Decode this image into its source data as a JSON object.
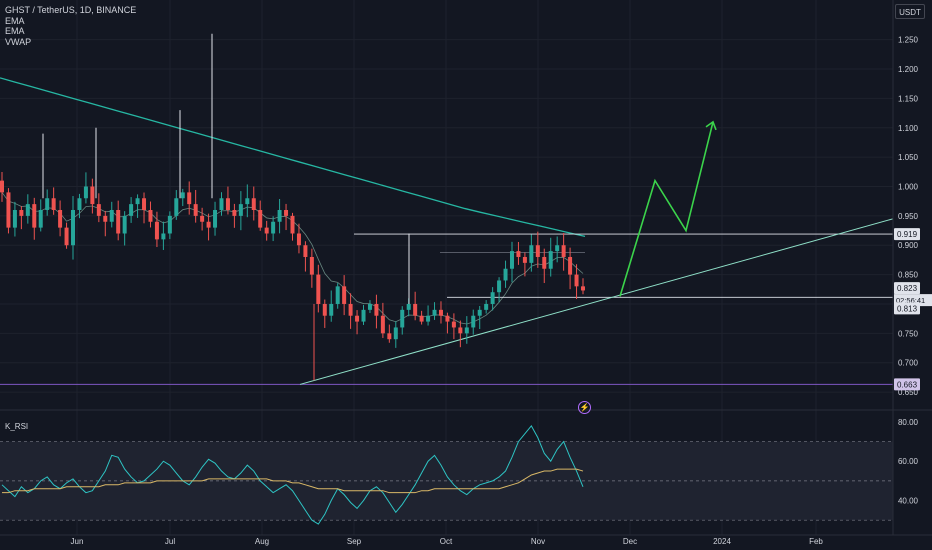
{
  "legend": {
    "title": "GHST / TetherUS, 1D, BINANCE",
    "indicators": [
      "EMA",
      "EMA",
      "VWAP"
    ]
  },
  "price_axis": {
    "unit": "USDT",
    "ticks": [
      "1.250",
      "1.200",
      "1.150",
      "1.100",
      "1.050",
      "1.000",
      "0.950",
      "0.900",
      "0.850",
      "0.800",
      "0.750",
      "0.700",
      "0.650"
    ],
    "tags": {
      "resistance": "0.919",
      "last_price": "0.823",
      "countdown": "02:56:41",
      "bid": "0.813",
      "support": "0.663"
    }
  },
  "time_axis": {
    "ticks": [
      "Jun",
      "Jul",
      "Aug",
      "Sep",
      "Oct",
      "Nov",
      "Dec",
      "2024",
      "Feb"
    ]
  },
  "rsi_pane": {
    "label": "K_RSI",
    "ticks": [
      "80.00",
      "60.00",
      "40.00"
    ],
    "bands": [
      70,
      50,
      30
    ]
  },
  "icons": {
    "flash": "lightning-icon"
  },
  "colors": {
    "background": "#131722",
    "up": "#26a69a",
    "down": "#ef5350",
    "ema_long": "#26b7a3",
    "projection": "#3bd44b",
    "rsi": "#2ec4c4",
    "rsi_ma": "#d9b867",
    "support_line": "#7e57c2"
  },
  "chart_data": [
    {
      "type": "candlestick",
      "title": "GHST / TetherUS, 1D, BINANCE",
      "xlabel": "",
      "ylabel": "",
      "ylim": [
        0.645,
        1.275
      ],
      "x_ticks": [
        "Jun",
        "Jul",
        "Aug",
        "Sep",
        "Oct",
        "Nov",
        "Dec",
        "2024",
        "Feb"
      ],
      "y_ticks": [
        1.25,
        1.2,
        1.15,
        1.1,
        1.05,
        1.0,
        0.95,
        0.9,
        0.85,
        0.8,
        0.75,
        0.7,
        0.65
      ],
      "price_path": [
        0.99,
        0.93,
        0.96,
        0.95,
        0.97,
        0.93,
        0.96,
        0.98,
        0.96,
        0.93,
        0.9,
        0.96,
        0.98,
        1.0,
        0.97,
        0.95,
        0.94,
        0.96,
        0.92,
        0.95,
        0.97,
        0.98,
        0.96,
        0.94,
        0.91,
        0.92,
        0.95,
        0.98,
        0.99,
        0.97,
        0.95,
        0.94,
        0.93,
        0.96,
        0.98,
        0.96,
        0.95,
        0.97,
        0.98,
        0.96,
        0.93,
        0.92,
        0.94,
        0.96,
        0.95,
        0.92,
        0.9,
        0.88,
        0.85,
        0.8,
        0.78,
        0.8,
        0.83,
        0.8,
        0.78,
        0.77,
        0.79,
        0.8,
        0.78,
        0.75,
        0.74,
        0.76,
        0.79,
        0.8,
        0.78,
        0.77,
        0.78,
        0.79,
        0.78,
        0.77,
        0.76,
        0.75,
        0.76,
        0.78,
        0.79,
        0.8,
        0.82,
        0.84,
        0.86,
        0.89,
        0.88,
        0.87,
        0.9,
        0.88,
        0.86,
        0.89,
        0.9,
        0.88,
        0.85,
        0.83,
        0.823
      ],
      "horizontal_levels": [
        {
          "value": 0.919,
          "label": "0.919"
        },
        {
          "value": 0.813,
          "label": "0.813"
        },
        {
          "value": 0.663,
          "label": "0.663"
        }
      ],
      "projection_path": [
        0.813,
        1.01,
        0.925,
        1.11
      ]
    },
    {
      "type": "line",
      "title": "K_RSI",
      "ylim": [
        25,
        82
      ],
      "y_ticks": [
        80,
        60,
        40
      ],
      "bands": [
        70,
        50,
        30
      ],
      "series": [
        {
          "values": [
            48,
            45,
            42,
            47,
            44,
            46,
            50,
            52,
            48,
            46,
            49,
            51,
            47,
            44,
            45,
            50,
            55,
            63,
            62,
            56,
            52,
            49,
            50,
            53,
            56,
            60,
            58,
            54,
            50,
            48,
            52,
            57,
            61,
            59,
            55,
            52,
            51,
            54,
            58,
            55,
            50,
            47,
            44,
            46,
            48,
            45,
            40,
            35,
            30,
            28,
            33,
            40,
            46,
            43,
            39,
            36,
            40,
            45,
            47,
            44,
            39,
            34,
            38,
            43,
            48,
            54,
            60,
            63,
            58,
            52,
            48,
            45,
            43,
            46,
            48,
            49,
            50,
            52,
            55,
            62,
            70,
            74,
            78,
            72,
            64,
            60,
            66,
            70,
            62,
            55,
            47
          ]
        },
        {
          "values": [
            44,
            44,
            45,
            45,
            45,
            46,
            46,
            46,
            46,
            46,
            47,
            47,
            47,
            47,
            47,
            47,
            48,
            48,
            48,
            49,
            49,
            49,
            49,
            49,
            50,
            50,
            50,
            50,
            50,
            50,
            50,
            50,
            51,
            51,
            51,
            51,
            51,
            51,
            51,
            51,
            51,
            51,
            50,
            50,
            50,
            49,
            49,
            48,
            47,
            46,
            46,
            46,
            46,
            45,
            45,
            45,
            45,
            45,
            45,
            45,
            44,
            44,
            44,
            44,
            44,
            45,
            45,
            46,
            46,
            46,
            46,
            46,
            46,
            46,
            46,
            46,
            46,
            46,
            47,
            48,
            49,
            51,
            53,
            54,
            55,
            55,
            56,
            56,
            56,
            56,
            55
          ]
        }
      ]
    }
  ]
}
